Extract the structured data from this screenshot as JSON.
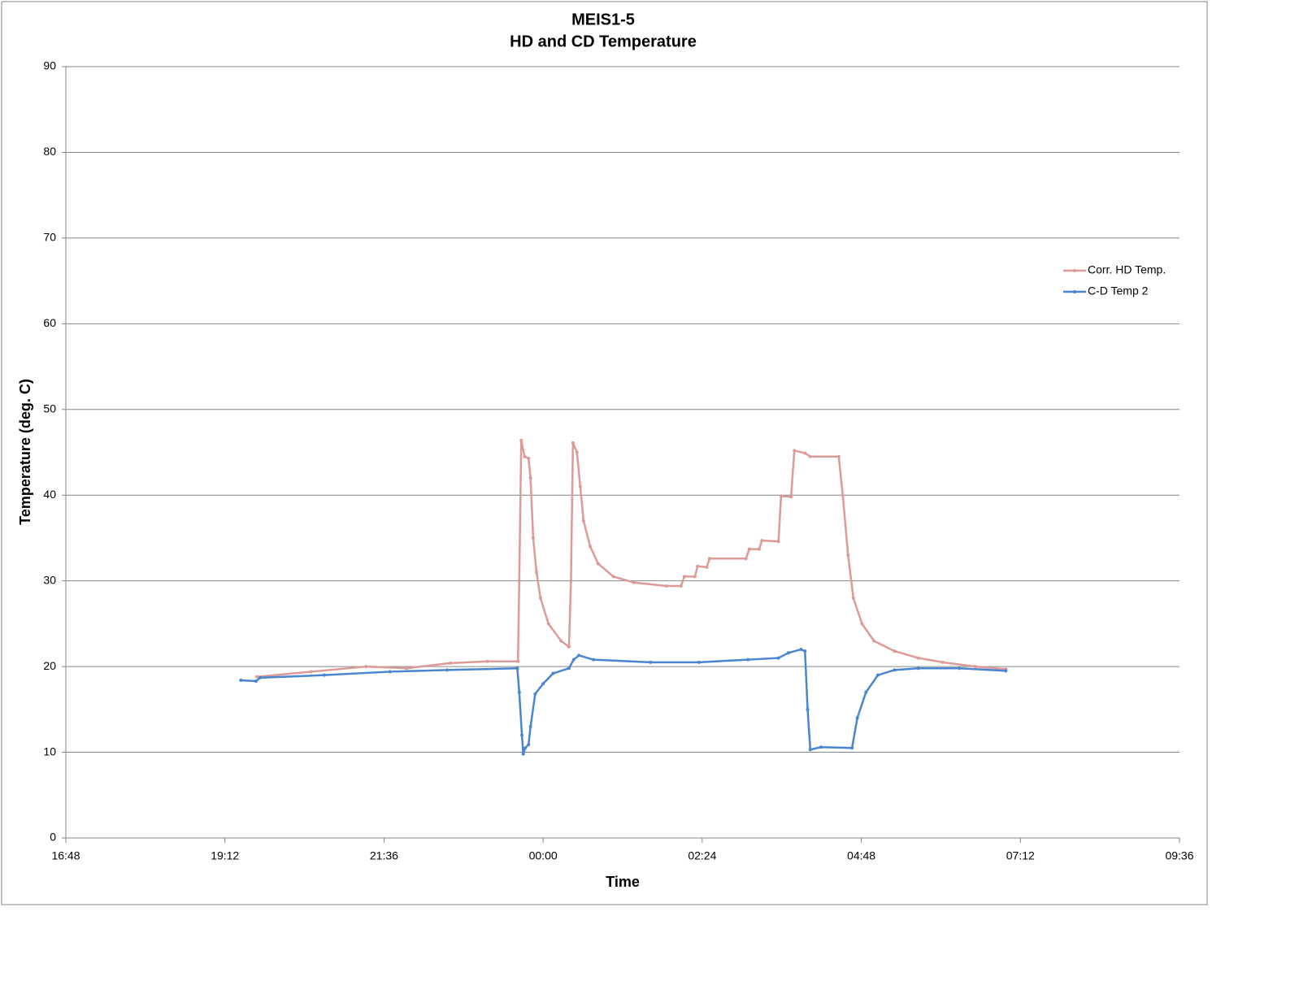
{
  "chart_data": {
    "type": "line",
    "title": "MEIS1-5",
    "subtitle": "HD and CD Temperature",
    "x_label": "Time",
    "y_label": "Temperature (deg. C)",
    "xlim": [
      16.8,
      33.6
    ],
    "xticks": [
      {
        "value": 16.8,
        "label": "16:48"
      },
      {
        "value": 19.2,
        "label": "19:12"
      },
      {
        "value": 21.6,
        "label": "21:36"
      },
      {
        "value": 24,
        "label": "00:00"
      },
      {
        "value": 26.4,
        "label": "02:24"
      },
      {
        "value": 28.8,
        "label": "04:48"
      },
      {
        "value": 31.2,
        "label": "07:12"
      },
      {
        "value": 33.6,
        "label": "09:36"
      }
    ],
    "ylim": [
      0,
      90
    ],
    "yticks": [
      0,
      10,
      20,
      30,
      40,
      50,
      60,
      70,
      80,
      90
    ],
    "grid": true,
    "legend": "right",
    "series": [
      {
        "name": "Corr. HD Temp.",
        "color": "#dc9a98",
        "x": [
          19.68,
          20.5,
          21.33,
          21.94,
          22.6,
          23.16,
          23.62,
          23.64,
          23.67,
          23.72,
          23.78,
          23.81,
          23.85,
          23.9,
          23.96,
          24.08,
          24.27,
          24.39,
          24.42,
          24.45,
          24.51,
          24.56,
          24.61,
          24.71,
          24.83,
          25.06,
          25.37,
          25.86,
          26.08,
          26.13,
          26.29,
          26.33,
          26.47,
          26.51,
          27.06,
          27.11,
          27.26,
          27.3,
          27.55,
          27.59,
          27.74,
          27.79,
          27.95,
          28.03,
          28.46,
          28.52,
          28.6,
          28.68,
          28.81,
          28.99,
          29.3,
          29.66,
          30.03,
          30.52,
          30.98
        ],
        "values": [
          18.8,
          19.4,
          20.0,
          19.8,
          20.4,
          20.6,
          20.6,
          30,
          46.4,
          44.5,
          44.3,
          42,
          35,
          31,
          28,
          25,
          23,
          22.3,
          30,
          46.1,
          45,
          41,
          37,
          34,
          32,
          30.5,
          29.8,
          29.4,
          29.4,
          30.5,
          30.5,
          31.7,
          31.6,
          32.6,
          32.6,
          33.7,
          33.7,
          34.7,
          34.6,
          39.9,
          39.8,
          45.2,
          44.9,
          44.5,
          44.5,
          40,
          33,
          28,
          25,
          23,
          21.8,
          21,
          20.5,
          20,
          19.7
        ]
      },
      {
        "name": "C-D Temp 2",
        "color": "#4a86cf",
        "x": [
          19.44,
          19.67,
          19.73,
          20.7,
          21.69,
          22.55,
          23.61,
          23.64,
          23.68,
          23.7,
          23.73,
          23.78,
          23.81,
          23.88,
          24.0,
          24.15,
          24.39,
          24.46,
          24.54,
          24.76,
          25.62,
          26.35,
          27.09,
          27.55,
          27.7,
          27.89,
          27.95,
          27.99,
          28.03,
          28.19,
          28.66,
          28.74,
          28.87,
          29.05,
          29.3,
          29.66,
          30.28,
          30.98
        ],
        "values": [
          18.4,
          18.3,
          18.7,
          19.0,
          19.4,
          19.6,
          19.8,
          17,
          12,
          9.8,
          10.5,
          10.9,
          13,
          16.8,
          18,
          19.2,
          19.8,
          20.8,
          21.3,
          20.8,
          20.5,
          20.5,
          20.8,
          21,
          21.6,
          22,
          21.8,
          15,
          10.3,
          10.6,
          10.5,
          14,
          17,
          19,
          19.6,
          19.8,
          19.8,
          19.5
        ]
      }
    ]
  }
}
